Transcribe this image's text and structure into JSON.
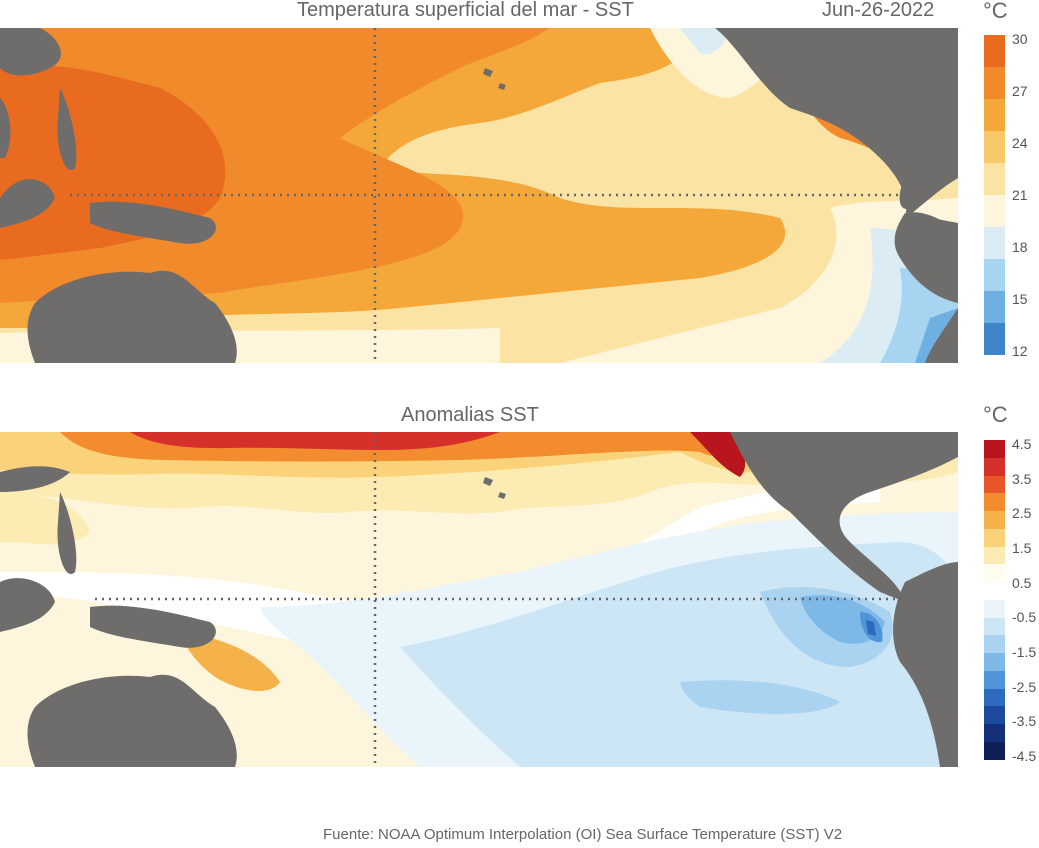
{
  "top": {
    "title": "Temperatura superficial del mar - SST",
    "date": "Jun-26-2022",
    "unit": "°C",
    "colorbar": {
      "colors": [
        "#e96b20",
        "#f08a2a",
        "#f5a83a",
        "#f9c868",
        "#fbe3a4",
        "#fdf6dd",
        "#dcecf5",
        "#a7d4f0",
        "#6fb0e3",
        "#3f86c9"
      ],
      "ticks": [
        "30",
        "27",
        "24",
        "21",
        "18",
        "15",
        "12"
      ]
    }
  },
  "bottom": {
    "title": "Anomalias SST",
    "unit": "°C",
    "colorbar": {
      "colors": [
        "#b8151f",
        "#d6302a",
        "#e8562a",
        "#f28c2e",
        "#f6b24a",
        "#f9d27a",
        "#fcecb4",
        "#fffdf0",
        "#ffffff",
        "#eaf4fb",
        "#cde6f6",
        "#a9d3f0",
        "#7db8e6",
        "#4f95d8",
        "#2d6bbf",
        "#1d4a9c",
        "#15307a",
        "#0e1f55"
      ],
      "ticks": [
        "4.5",
        "3.5",
        "2.5",
        "1.5",
        "0.5",
        "-0.5",
        "-1.5",
        "-2.5",
        "-3.5",
        "-4.5"
      ]
    }
  },
  "source": "Fuente: NOAA Optimum Interpolation (OI) Sea Surface Temperature (SST) V2"
}
